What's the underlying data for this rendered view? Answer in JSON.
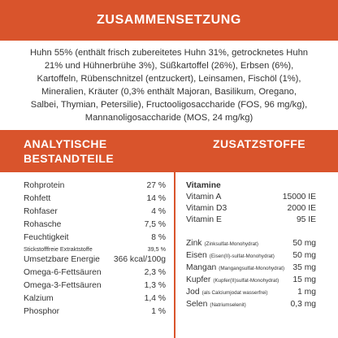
{
  "header": {
    "title": "ZUSAMMENSETZUNG"
  },
  "composition": {
    "lines": [
      "Huhn 55% (enthält frisch zubereitetes Huhn 31%, getrocknetes Huhn",
      "21% und Hühnerbrühe 3%), Süßkartoffel (26%), Erbsen (6%),",
      "Kartoffeln, Rübenschnitzel (entzuckert), Leinsamen, Fischöl (1%),",
      "Mineralien, Kräuter (0,3% enthält Majoran, Basilikum, Oregano,",
      "Salbei, Thymian, Petersilie), Fructooligosaccharide (FOS, 96 mg/kg),",
      "Mannanoligosaccharide (MOS, 24 mg/kg)"
    ]
  },
  "sections": {
    "analytical_title_line1": "ANALYTISCHE",
    "analytical_title_line2": "BESTANDTEILE",
    "additives_title": "ZUSATZSTOFFE"
  },
  "analytical": [
    {
      "label": "Rohprotein",
      "value": "27 %"
    },
    {
      "label": "Rohfett",
      "value": "14 %"
    },
    {
      "label": "Rohfaser",
      "value": "4 %"
    },
    {
      "label": "Rohasche",
      "value": "7,5 %"
    },
    {
      "label": "Feuchtigkeit",
      "value": "8 %"
    },
    {
      "label": "Stickstofffreie Extraktstoffe",
      "value": "39,5 %"
    },
    {
      "label": "Umsetzbare Energie",
      "value": "366 kcal/100g"
    },
    {
      "label": "Omega-6-Fettsäuren",
      "value": "2,3 %"
    },
    {
      "label": "Omega-3-Fettsäuren",
      "value": "1,3 %"
    },
    {
      "label": "Kalzium",
      "value": "1,4 %"
    },
    {
      "label": "Phosphor",
      "value": "1 %"
    }
  ],
  "vitamins": {
    "title": "Vitamine",
    "items": [
      {
        "label": "Vitamin A",
        "value": "15000 IE"
      },
      {
        "label": "Vitamin D3",
        "value": "2000 IE"
      },
      {
        "label": "Vitamin E",
        "value": "95 IE"
      }
    ]
  },
  "minerals": [
    {
      "name": "Zink",
      "note": "Zinksulfat-Monohydrat",
      "value": "50 mg"
    },
    {
      "name": "Eisen",
      "note": "Eisen(II)-sulfat-Monohydrat",
      "value": "50 mg"
    },
    {
      "name": "Mangan",
      "note": "Mangangsulfat-Monohydrat",
      "value": "35 mg"
    },
    {
      "name": "Kupfer",
      "note": "Kupfer(II)sulfat-Monohydrat",
      "value": "15 mg"
    },
    {
      "name": "Jod",
      "note": "als Calciumjodat wasserfrei",
      "value": "1 mg"
    },
    {
      "name": "Selen",
      "note": "Natriumselenit",
      "value": "0,3 mg"
    }
  ],
  "colors": {
    "accent": "#d9542c",
    "text": "#333333",
    "background": "#ffffff"
  }
}
